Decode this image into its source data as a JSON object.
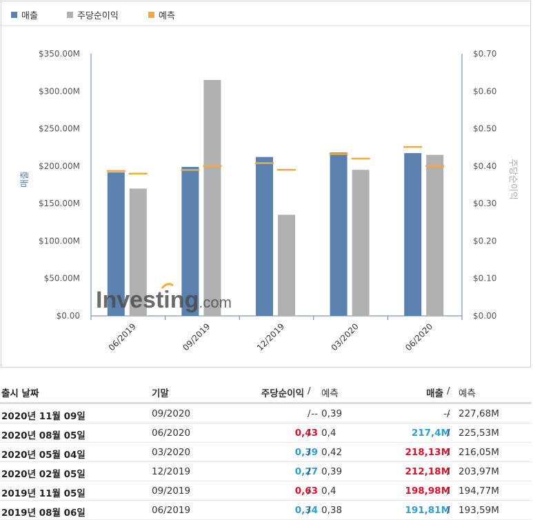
{
  "legend": {
    "revenue": {
      "label": "매출",
      "color": "#5b82ae"
    },
    "eps": {
      "label": "주당순이익",
      "color": "#b0b0b0"
    },
    "forecast": {
      "label": "예측",
      "color": "#f3a93c"
    }
  },
  "chart_data": {
    "type": "bar",
    "categories": [
      "06/2019",
      "09/2019",
      "12/2019",
      "03/2020",
      "06/2020"
    ],
    "ylabel_left": "매출",
    "ylabel_right": "주당순이익",
    "left_axis": {
      "min": 0,
      "max": 350,
      "ticks": [
        "$0.00",
        "$50.00M",
        "$100.00M",
        "$150.00M",
        "$200.00M",
        "$250.00M",
        "$300.00M",
        "$350.00M"
      ]
    },
    "right_axis": {
      "min": 0,
      "max": 0.7,
      "ticks": [
        "$0.00",
        "$0.10",
        "$0.20",
        "$0.30",
        "$0.40",
        "$0.50",
        "$0.60",
        "$0.70"
      ]
    },
    "series": [
      {
        "name": "매출",
        "axis": "left",
        "values": [
          191.81,
          198.98,
          212.18,
          218.13,
          217.4
        ]
      },
      {
        "name": "주당순이익",
        "axis": "right",
        "values": [
          0.34,
          0.63,
          0.27,
          0.39,
          0.43
        ]
      }
    ],
    "forecast_revenue": [
      193.59,
      194.77,
      203.97,
      216.05,
      225.53
    ],
    "forecast_eps": [
      0.38,
      0.4,
      0.39,
      0.42,
      0.4
    ]
  },
  "watermark": {
    "brand": "Investing",
    "suffix": ".com"
  },
  "table": {
    "headers": {
      "date": "출시 날짜",
      "period": "기말",
      "eps": "주당순이익",
      "eps_forecast": "예측",
      "revenue": "매출",
      "revenue_forecast": "예측",
      "sep": "/"
    },
    "rows": [
      {
        "date": "2020년 11월 09일",
        "period": "09/2020",
        "eps": "--",
        "eps_class": "neutral",
        "eps_forecast": "0,39",
        "revenue": "--",
        "rev_class": "neutral",
        "revenue_forecast": "227,68M"
      },
      {
        "date": "2020년 08월 05일",
        "period": "06/2020",
        "eps": "0,43",
        "eps_class": "up",
        "eps_forecast": "0,4",
        "revenue": "217,4M",
        "rev_class": "down",
        "revenue_forecast": "225,53M"
      },
      {
        "date": "2020년 05월 04일",
        "period": "03/2020",
        "eps": "0,39",
        "eps_class": "down",
        "eps_forecast": "0,42",
        "revenue": "218,13M",
        "rev_class": "up",
        "revenue_forecast": "216,05M"
      },
      {
        "date": "2020년 02월 05일",
        "period": "12/2019",
        "eps": "0,27",
        "eps_class": "down",
        "eps_forecast": "0,39",
        "revenue": "212,18M",
        "rev_class": "up",
        "revenue_forecast": "203,97M"
      },
      {
        "date": "2019년 11월 05일",
        "period": "09/2019",
        "eps": "0,63",
        "eps_class": "up",
        "eps_forecast": "0,4",
        "revenue": "198,98M",
        "rev_class": "up",
        "revenue_forecast": "194,77M"
      },
      {
        "date": "2019년 08월 06일",
        "period": "06/2019",
        "eps": "0,34",
        "eps_class": "down",
        "eps_forecast": "0,38",
        "revenue": "191,81M",
        "rev_class": "down",
        "revenue_forecast": "193,59M"
      }
    ]
  }
}
